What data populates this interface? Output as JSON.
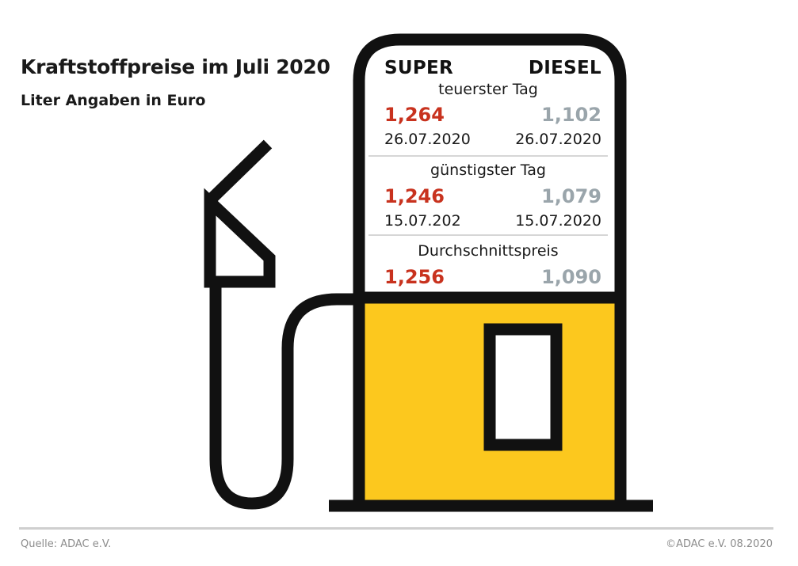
{
  "title": "Kraftstoffpreise im Juli 2020",
  "subtitle": "Liter Angaben in Euro",
  "columns": {
    "super": "SUPER",
    "diesel": "DIESEL"
  },
  "sections": {
    "expensive": {
      "label": "teuerster Tag",
      "super_price": "1,264",
      "diesel_price": "1,102",
      "super_date": "26.07.2020",
      "diesel_date": "26.07.2020"
    },
    "cheapest": {
      "label": "günstigster Tag",
      "super_price": "1,246",
      "diesel_price": "1,079",
      "super_date": "15.07.202",
      "diesel_date": "15.07.2020"
    },
    "average": {
      "label": "Durchschnittspreis",
      "super_price": "1,256",
      "diesel_price": "1,090"
    }
  },
  "footer": {
    "source": "Quelle: ADAC e.V.",
    "copyright": "©ADAC e.V.  08.2020"
  },
  "colors": {
    "super_price": "#c8321e",
    "diesel_price": "#9aa5ab",
    "pump_body": "#fcc81e",
    "outline": "#111111"
  },
  "icons": {
    "pump": "fuel-pump-icon",
    "nozzle": "fuel-nozzle-icon"
  }
}
